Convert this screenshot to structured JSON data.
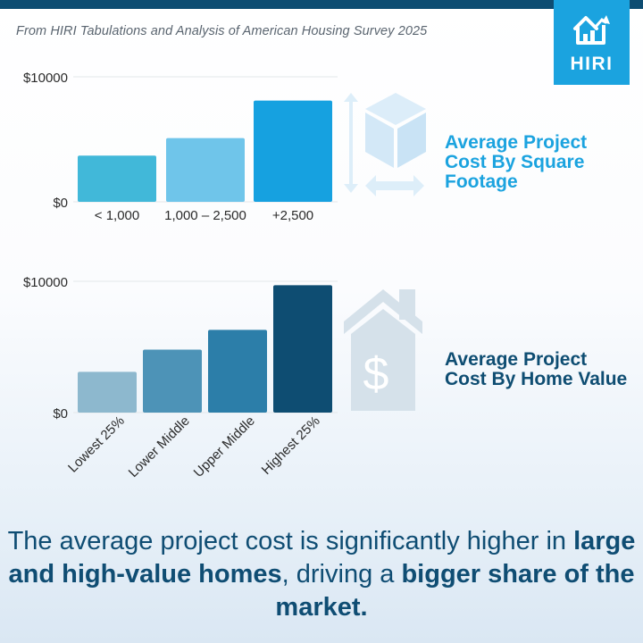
{
  "source": "From HIRI Tabulations and Analysis of American Housing Survey 2025",
  "logo": "HIRI",
  "chart_data": [
    {
      "type": "bar",
      "title": "Average Project Cost By Square Footage",
      "categories": [
        "< 1,000",
        "1,000 – 2,500",
        "+2,500"
      ],
      "values": [
        3700,
        5100,
        8100
      ],
      "ylim": [
        0,
        10000
      ],
      "yticks": [
        "$10000",
        "$0"
      ],
      "colors": [
        "#41b8d9",
        "#6fc5ea",
        "#16a1e0"
      ]
    },
    {
      "type": "bar",
      "title": "Average Project Cost By Home Value",
      "categories": [
        "Lowest 25%",
        "Lower Middle",
        "Upper Middle",
        "Highest 25%"
      ],
      "values": [
        3100,
        4800,
        6300,
        9700
      ],
      "ylim": [
        0,
        10000
      ],
      "yticks": [
        "$10000",
        "$0"
      ],
      "colors": [
        "#8db8ce",
        "#4d93b7",
        "#2c7ea9",
        "#0e4d72"
      ]
    }
  ],
  "bottom": {
    "part1": "The average project cost is significantly higher in ",
    "bold1": "large and high-value homes",
    "part2": ", driving a ",
    "bold2": "bigger share of the market."
  }
}
